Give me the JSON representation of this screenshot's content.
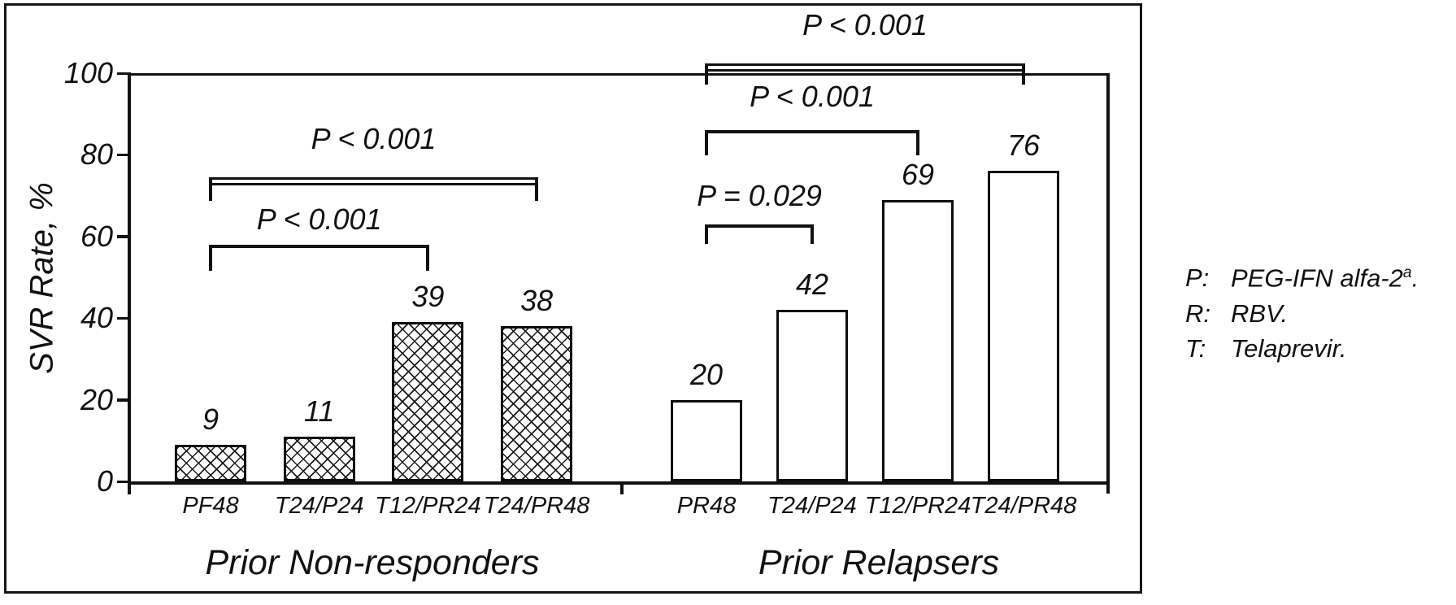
{
  "chart_data": {
    "type": "bar",
    "title": "",
    "ylabel": "SVR Rate, %",
    "xlabel": "",
    "ylim": [
      0,
      100
    ],
    "yticks": [
      0,
      20,
      40,
      60,
      80,
      100
    ],
    "grid": false,
    "legend_position": "right-outside",
    "colors": {
      "ink": "#111111",
      "background": "#ffffff"
    },
    "groups": [
      {
        "label": "Prior Non-responders",
        "pattern": "crosshatch",
        "categories": [
          "PF48",
          "T24/P24",
          "T12/PR24",
          "T24/PR48"
        ],
        "values": [
          9,
          11,
          39,
          38
        ]
      },
      {
        "label": "Prior Relapsers",
        "pattern": "plain",
        "categories": [
          "PR48",
          "T24/P24",
          "T12/PR24",
          "T24/PR48"
        ],
        "values": [
          20,
          42,
          69,
          76
        ]
      }
    ],
    "significance_brackets": [
      {
        "group": 0,
        "from": 0,
        "to": 2,
        "label": "P < 0.001",
        "height_value": 58,
        "style": "line"
      },
      {
        "group": 0,
        "from": 0,
        "to": 3,
        "label": "P < 0.001",
        "height_value": 74.5,
        "style": "rect"
      },
      {
        "group": 1,
        "from": 0,
        "to": 1,
        "label": "P = 0.029",
        "height_value": 63,
        "style": "line"
      },
      {
        "group": 1,
        "from": 0,
        "to": 2,
        "label": "P < 0.001",
        "height_value": 86,
        "style": "line"
      },
      {
        "group": 1,
        "from": 0,
        "to": 3,
        "label": "P < 0.001",
        "height_value": 102.3,
        "style": "rect"
      }
    ],
    "legend": [
      {
        "abbr": "P:",
        "text": "PEG-IFN alfa-2",
        "sup": "a",
        "suffix": "."
      },
      {
        "abbr": "R:",
        "text": "RBV",
        "sup": "",
        "suffix": "."
      },
      {
        "abbr": "T:",
        "text": "Telaprevir",
        "sup": "",
        "suffix": "."
      }
    ]
  }
}
